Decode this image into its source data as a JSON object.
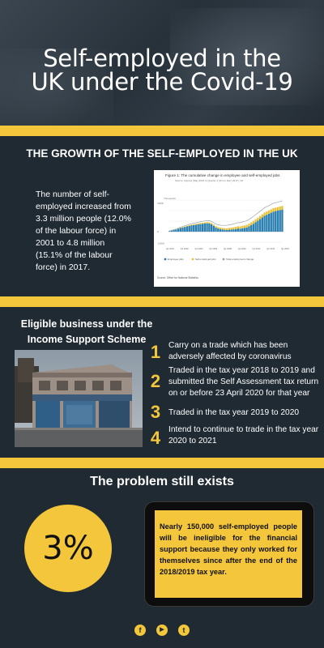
{
  "hero": {
    "title_line1": "Self-employed in the",
    "title_line2": "UK under the Covid-19"
  },
  "growth": {
    "heading": "THE GROWTH OF THE SELF-EMPLOYED IN THE UK",
    "text": "The number of self-employed increased from 3.3 million people (12.0% of the labour force) in 2001 to 4.8 million (15.1% of the labour force) in 2017."
  },
  "chart_data": {
    "type": "bar",
    "title": "Figure 1: The cumulative change in employee and self-employed jobs",
    "subtitle": "Source: Figures (May 2001 to Quarter 4 (Oct to Dec) 2017), UK",
    "ylabel": "Thousands",
    "yticks": [
      "4,000",
      "0",
      "-2,000"
    ],
    "xticks": [
      "Q1 2001",
      "Q1 2002",
      "Q1 2004",
      "Q1 2006",
      "Q1 2008",
      "Q1 2010",
      "Q1 2012",
      "Q1 2014",
      "Q1 2016"
    ],
    "legend": [
      "Employee jobs",
      "Self-employed jobs",
      "Total employment change"
    ],
    "source": "Source: Office for National Statistics",
    "colors": {
      "employee": "#2a7fb0",
      "self_employed": "#e8c33a",
      "total": "#9aa3ab"
    },
    "series": [
      {
        "name": "Employee jobs",
        "values": [
          0.05,
          0.1,
          0.15,
          0.2,
          0.28,
          0.35,
          0.4,
          0.45,
          0.5,
          0.55,
          0.6,
          0.62,
          0.65,
          0.7,
          0.72,
          0.75,
          0.78,
          0.8,
          0.78,
          0.7,
          0.55,
          0.4,
          0.3,
          0.25,
          0.2,
          0.18,
          0.15,
          0.18,
          0.2,
          0.22,
          0.25,
          0.3,
          0.28,
          0.32,
          0.35,
          0.4,
          0.5,
          0.62,
          0.75,
          0.9,
          1.05,
          1.2,
          1.35,
          1.5,
          1.6,
          1.7,
          1.8,
          1.9,
          1.95,
          2.0,
          2.05,
          2.1
        ]
      },
      {
        "name": "Self-employed jobs",
        "values": [
          0.02,
          0.03,
          0.05,
          0.06,
          0.08,
          0.1,
          0.12,
          0.15,
          0.16,
          0.18,
          0.2,
          0.22,
          0.24,
          0.25,
          0.26,
          0.28,
          0.3,
          0.3,
          0.32,
          0.33,
          0.35,
          0.36,
          0.38,
          0.4,
          0.42,
          0.45,
          0.48,
          0.5,
          0.52,
          0.55,
          0.58,
          0.6,
          0.62,
          0.65,
          0.68,
          0.7,
          0.72,
          0.75,
          0.78,
          0.8,
          0.82,
          0.84,
          0.86,
          0.88,
          0.9,
          0.9,
          0.92,
          0.93,
          0.94,
          0.95,
          0.96,
          0.97
        ]
      },
      {
        "name": "Total employment change",
        "values": [
          0.07,
          0.13,
          0.2,
          0.26,
          0.36,
          0.45,
          0.52,
          0.6,
          0.66,
          0.73,
          0.8,
          0.84,
          0.89,
          0.95,
          0.98,
          1.03,
          1.08,
          1.1,
          1.1,
          1.03,
          0.9,
          0.76,
          0.68,
          0.65,
          0.62,
          0.63,
          0.63,
          0.68,
          0.72,
          0.77,
          0.83,
          0.9,
          0.9,
          0.97,
          1.03,
          1.1,
          1.22,
          1.37,
          1.53,
          1.7,
          1.87,
          2.04,
          2.21,
          2.38,
          2.5,
          2.6,
          2.72,
          2.83,
          2.89,
          2.95,
          3.01,
          3.07
        ]
      }
    ]
  },
  "eligible": {
    "heading_line1": "Eligible business under the",
    "heading_line2": "Income Support Scheme",
    "items": [
      {
        "num": "1",
        "text": "Carry on a trade which has been adversely affected by coronavirus"
      },
      {
        "num": "2",
        "text": "Traded in the tax year 2018 to 2019 and submitted the Self Assessment tax return on or before 23 April 2020 for that year"
      },
      {
        "num": "3",
        "text": "Traded in the tax year 2019 to 2020"
      },
      {
        "num": "4",
        "text": "Intend to continue to trade in the tax year 2020 to 2021"
      }
    ]
  },
  "problem": {
    "heading": "The problem still exists",
    "percent": "3%",
    "text": "Nearly 150,000 self-employed people will be ineligible for the financial support because they only worked for themselves since after the end of the 2018/2019 tax year."
  },
  "social": {
    "icons": [
      "facebook-icon",
      "youtube-icon",
      "twitter-icon"
    ],
    "glyphs": [
      "f",
      "▶",
      "t"
    ]
  },
  "colors": {
    "background": "#1f2a33",
    "accent": "#f3c63b"
  }
}
